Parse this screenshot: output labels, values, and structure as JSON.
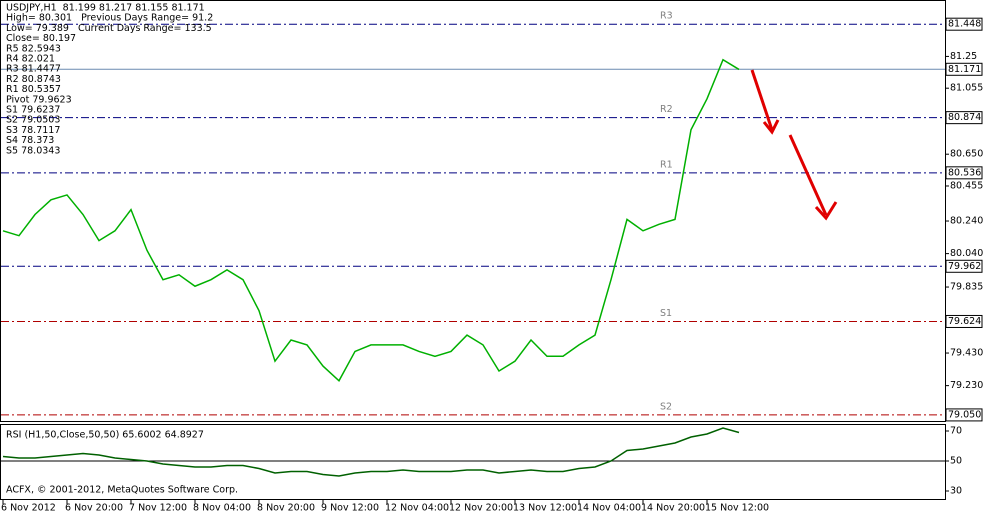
{
  "chart_data": {
    "type": "line",
    "info": [
      "USDJPY,H1  81.199 81.217 81.155 81.171",
      "High= 80.301   Previous Days Range= 91.2",
      "Low= 79.389   Current Days Range= 133.5",
      "Close= 80.197",
      "R5 82.5943",
      "R4 82.021",
      "R3 81.4477",
      "R2 80.8743",
      "R1 80.5357",
      "Pivot 79.9623",
      "S1 79.6237",
      "S2 79.0503",
      "S3 78.7117",
      "S4 78.373",
      "S5 78.0343"
    ],
    "categories": [
      "6 Nov 2012",
      null,
      null,
      null,
      "6 Nov 20:00",
      null,
      null,
      null,
      "7 Nov 12:00",
      null,
      null,
      null,
      "8 Nov 04:00",
      null,
      null,
      null,
      "8 Nov 20:00",
      null,
      null,
      null,
      "9 Nov 12:00",
      null,
      null,
      null,
      "12 Nov 04:00",
      null,
      null,
      null,
      "12 Nov 20:00",
      null,
      null,
      null,
      "13 Nov 12:00",
      null,
      null,
      null,
      "14 Nov 04:00",
      null,
      null,
      null,
      "14 Nov 20:00",
      null,
      null,
      null,
      "15 Nov 12:00",
      null,
      null,
      null,
      null,
      null,
      null,
      null,
      null,
      null,
      null,
      null,
      null,
      null
    ],
    "series": [
      {
        "color": "#00b000",
        "values": [
          80.18,
          80.15,
          80.28,
          80.37,
          80.4,
          80.28,
          80.12,
          80.18,
          80.31,
          80.06,
          79.88,
          79.91,
          79.84,
          79.88,
          79.94,
          79.88,
          79.69,
          79.38,
          79.51,
          79.48,
          79.35,
          79.26,
          79.44,
          79.48,
          79.48,
          79.48,
          79.44,
          79.41,
          79.44,
          79.54,
          79.48,
          79.32,
          79.38,
          79.51,
          79.41,
          79.41,
          79.48,
          79.54,
          79.88,
          80.25,
          80.18,
          80.22,
          80.25,
          80.8,
          80.99,
          81.23,
          81.17,
          null,
          null,
          null,
          null,
          null,
          null,
          null,
          null,
          null,
          null,
          null
        ]
      }
    ],
    "ylim": [
      79.013,
      81.59
    ],
    "yticks": [
      81.25,
      81.055,
      {
        "value": 80.65,
        "label": "80.650"
      },
      80.455,
      {
        "value": 80.24,
        "label": "80.240"
      },
      {
        "value": 80.04,
        "label": "80.040"
      },
      79.835,
      {
        "value": 79.43,
        "label": "79.430"
      },
      {
        "value": 79.23,
        "label": "79.230"
      }
    ],
    "levels": [
      {
        "name": "R3",
        "value": 81.4477,
        "label": "81.448",
        "color": "#000080"
      },
      {
        "name": "R2",
        "value": 80.8743,
        "label": "80.874",
        "color": "#000080"
      },
      {
        "name": "R1",
        "value": 80.5357,
        "label": "80.536",
        "color": "#000080"
      },
      {
        "value": 79.9623,
        "label": "79.962",
        "color": "#000080"
      },
      {
        "name": "S1",
        "value": 79.6237,
        "label": "79.624",
        "color": "#b00000"
      },
      {
        "name": "S2",
        "value": 79.0503,
        "label": "79.050",
        "color": "#b00000"
      }
    ],
    "last": 81.171,
    "rsi": {
      "title": "RSI (H1,50,Close,50,50) 65.6002 64.8927",
      "color": "#006000",
      "ylim": [
        24,
        74
      ],
      "yticks": [
        30,
        50,
        70
      ],
      "values": [
        53,
        52,
        52,
        53,
        54,
        55,
        54,
        52,
        51,
        50,
        48,
        47,
        46,
        46,
        47,
        47,
        45,
        42,
        43,
        43,
        41,
        40,
        42,
        43,
        43,
        44,
        43,
        43,
        43,
        44,
        44,
        42,
        43,
        44,
        43,
        43,
        45,
        46,
        50,
        57,
        58,
        60,
        62,
        66,
        68,
        72,
        69,
        null,
        null,
        null,
        null,
        null,
        null,
        null,
        null,
        null,
        null,
        null
      ]
    },
    "copyright": "ACFX, © 2001-2012, MetaQuotes Software Corp."
  }
}
